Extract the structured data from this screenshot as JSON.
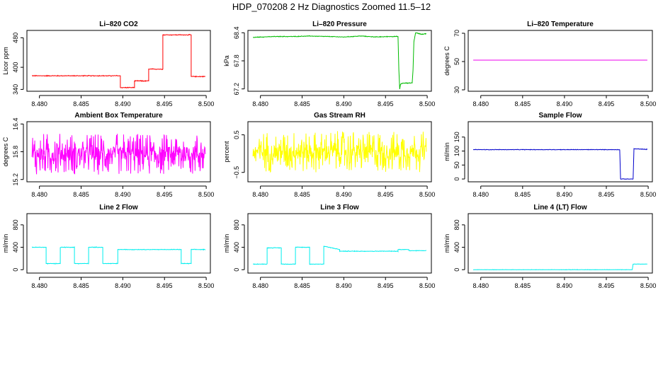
{
  "figure": {
    "title": "HDP_070208  2 Hz Diagnostics Zoomed 11.5–12"
  },
  "chart_data": [
    {
      "type": "line",
      "title": "Li–820 CO2",
      "xlabel": "",
      "ylabel": "Licor ppm",
      "xlim": [
        8.4785,
        8.5005
      ],
      "ylim": [
        335,
        500
      ],
      "xticks": [
        8.48,
        8.485,
        8.49,
        8.495,
        8.5
      ],
      "xtick_labels": [
        "8.480",
        "8.485",
        "8.490",
        "8.495",
        "8.500"
      ],
      "yticks": [
        340,
        400,
        480
      ],
      "ytick_labels": [
        "340",
        "400",
        "480"
      ],
      "color": "#ff0000",
      "noise": 1.2,
      "x": [
        8.4791,
        8.4897,
        8.4897,
        8.4914,
        8.4914,
        8.4931,
        8.4931,
        8.4948,
        8.4948,
        8.4982,
        8.4982,
        8.4999
      ],
      "y": [
        377,
        377,
        345,
        345,
        363,
        363,
        395,
        395,
        488,
        488,
        375,
        375
      ]
    },
    {
      "type": "line",
      "title": "Li–820 Pressure",
      "xlabel": "",
      "ylabel": "kPa",
      "xlim": [
        8.4785,
        8.5005
      ],
      "ylim": [
        67.15,
        68.45
      ],
      "xticks": [
        8.48,
        8.485,
        8.49,
        8.495,
        8.5
      ],
      "xtick_labels": [
        "8.480",
        "8.485",
        "8.490",
        "8.495",
        "8.500"
      ],
      "yticks": [
        67.2,
        67.8,
        68.4
      ],
      "ytick_labels": [
        "67.2",
        "67.8",
        "68.4"
      ],
      "color": "#00bb00",
      "noise": 0.008,
      "x": [
        8.4791,
        8.48,
        8.482,
        8.484,
        8.486,
        8.488,
        8.49,
        8.492,
        8.494,
        8.4955,
        8.4965,
        8.4966,
        8.4967,
        8.4968,
        8.497,
        8.4982,
        8.4983,
        8.4984,
        8.4986,
        8.4993,
        8.4999
      ],
      "y": [
        68.3,
        68.31,
        68.32,
        68.32,
        68.33,
        68.32,
        68.31,
        68.33,
        68.31,
        68.32,
        68.32,
        67.6,
        67.2,
        67.3,
        67.32,
        67.33,
        67.6,
        68.2,
        68.4,
        68.37,
        68.38
      ]
    },
    {
      "type": "line",
      "title": "Li–820 Temperature",
      "xlabel": "",
      "ylabel": "degrees C",
      "xlim": [
        8.4785,
        8.5005
      ],
      "ylim": [
        29,
        72
      ],
      "xticks": [
        8.48,
        8.485,
        8.49,
        8.495,
        8.5
      ],
      "xtick_labels": [
        "8.480",
        "8.485",
        "8.490",
        "8.495",
        "8.500"
      ],
      "yticks": [
        30,
        50,
        70
      ],
      "ytick_labels": [
        "30",
        "50",
        "70"
      ],
      "color": "#ee00ee",
      "noise": 0,
      "x": [
        8.4791,
        8.4999
      ],
      "y": [
        51,
        51
      ]
    },
    {
      "type": "line",
      "title": "Ambient Box Temperature",
      "xlabel": "",
      "ylabel": "degrees C",
      "xlim": [
        8.4785,
        8.5005
      ],
      "ylim": [
        15.15,
        16.45
      ],
      "xticks": [
        8.48,
        8.485,
        8.49,
        8.495,
        8.5
      ],
      "xtick_labels": [
        "8.480",
        "8.485",
        "8.490",
        "8.495",
        "8.500"
      ],
      "yticks": [
        15.2,
        15.8,
        16.4
      ],
      "ytick_labels": [
        "15.2",
        "15.8",
        "16.4"
      ],
      "color": "#ff00ff",
      "noise": 0.45,
      "x": [
        8.4791,
        8.4999
      ],
      "y": [
        15.75,
        15.75
      ]
    },
    {
      "type": "line",
      "title": "Gas Stream RH",
      "xlabel": "",
      "ylabel": "percent",
      "xlim": [
        8.4785,
        8.5005
      ],
      "ylim": [
        -0.75,
        0.85
      ],
      "xticks": [
        8.48,
        8.485,
        8.49,
        8.495,
        8.5
      ],
      "xtick_labels": [
        "8.480",
        "8.485",
        "8.490",
        "8.495",
        "8.500"
      ],
      "yticks": [
        -0.5,
        0.5
      ],
      "ytick_labels": [
        "−0.5",
        "0.5"
      ],
      "color": "#ffff00",
      "noise": 0.55,
      "x": [
        8.4791,
        8.4999
      ],
      "y": [
        0.05,
        0.05
      ]
    },
    {
      "type": "line",
      "title": "Sample Flow",
      "xlabel": "",
      "ylabel": "ml/min",
      "xlim": [
        8.4785,
        8.5005
      ],
      "ylim": [
        -10,
        205
      ],
      "xticks": [
        8.48,
        8.485,
        8.49,
        8.495,
        8.5
      ],
      "xtick_labels": [
        "8.480",
        "8.485",
        "8.490",
        "8.495",
        "8.500"
      ],
      "yticks": [
        0,
        50,
        100,
        150
      ],
      "ytick_labels": [
        "0",
        "50",
        "100",
        "150"
      ],
      "color": "#0000cc",
      "noise": 1.0,
      "x": [
        8.4791,
        8.4966,
        8.4967,
        8.4982,
        8.4983,
        8.4999
      ],
      "y": [
        105,
        105,
        0,
        0,
        108,
        106
      ]
    },
    {
      "type": "line",
      "title": "Line 2 Flow",
      "xlabel": "",
      "ylabel": "ml/min",
      "xlim": [
        8.4785,
        8.5005
      ],
      "ylim": [
        -60,
        1000
      ],
      "xticks": [
        8.48,
        8.485,
        8.49,
        8.495,
        8.5
      ],
      "xtick_labels": [
        "8.480",
        "8.485",
        "8.490",
        "8.495",
        "8.500"
      ],
      "yticks": [
        0,
        400,
        800
      ],
      "ytick_labels": [
        "0",
        "400",
        "800"
      ],
      "color": "#00eeee",
      "noise": 6,
      "x": [
        8.4791,
        8.4808,
        8.4808,
        8.4825,
        8.4825,
        8.4842,
        8.4842,
        8.4859,
        8.4859,
        8.4876,
        8.4876,
        8.4894,
        8.4894,
        8.497,
        8.497,
        8.4982,
        8.4982,
        8.4999
      ],
      "y": [
        400,
        400,
        110,
        110,
        400,
        400,
        110,
        110,
        400,
        400,
        110,
        110,
        360,
        360,
        110,
        110,
        360,
        360
      ]
    },
    {
      "type": "line",
      "title": "Line 3 Flow",
      "xlabel": "",
      "ylabel": "ml/min",
      "xlim": [
        8.4785,
        8.5005
      ],
      "ylim": [
        -60,
        1000
      ],
      "xticks": [
        8.48,
        8.485,
        8.49,
        8.495,
        8.5
      ],
      "xtick_labels": [
        "8.480",
        "8.485",
        "8.490",
        "8.495",
        "8.500"
      ],
      "yticks": [
        0,
        400,
        800
      ],
      "ytick_labels": [
        "0",
        "400",
        "800"
      ],
      "color": "#00eeee",
      "noise": 6,
      "x": [
        8.4791,
        8.4808,
        8.4808,
        8.4825,
        8.4825,
        8.4842,
        8.4842,
        8.4859,
        8.4859,
        8.4876,
        8.4876,
        8.4895,
        8.4895,
        8.4965,
        8.4965,
        8.4978,
        8.4978,
        8.4999
      ],
      "y": [
        100,
        100,
        390,
        390,
        100,
        100,
        400,
        400,
        100,
        100,
        420,
        360,
        330,
        330,
        360,
        360,
        340,
        340
      ]
    },
    {
      "type": "line",
      "title": "Line 4 (LT) Flow",
      "xlabel": "",
      "ylabel": "ml/min",
      "xlim": [
        8.4785,
        8.5005
      ],
      "ylim": [
        -60,
        1000
      ],
      "xticks": [
        8.48,
        8.485,
        8.49,
        8.495,
        8.5
      ],
      "xtick_labels": [
        "8.480",
        "8.485",
        "8.490",
        "8.495",
        "8.500"
      ],
      "yticks": [
        0,
        400,
        800
      ],
      "ytick_labels": [
        "0",
        "400",
        "800"
      ],
      "color": "#00eeee",
      "noise": 3,
      "x": [
        8.4791,
        8.4981,
        8.4982,
        8.4999
      ],
      "y": [
        0,
        0,
        100,
        100
      ]
    }
  ]
}
